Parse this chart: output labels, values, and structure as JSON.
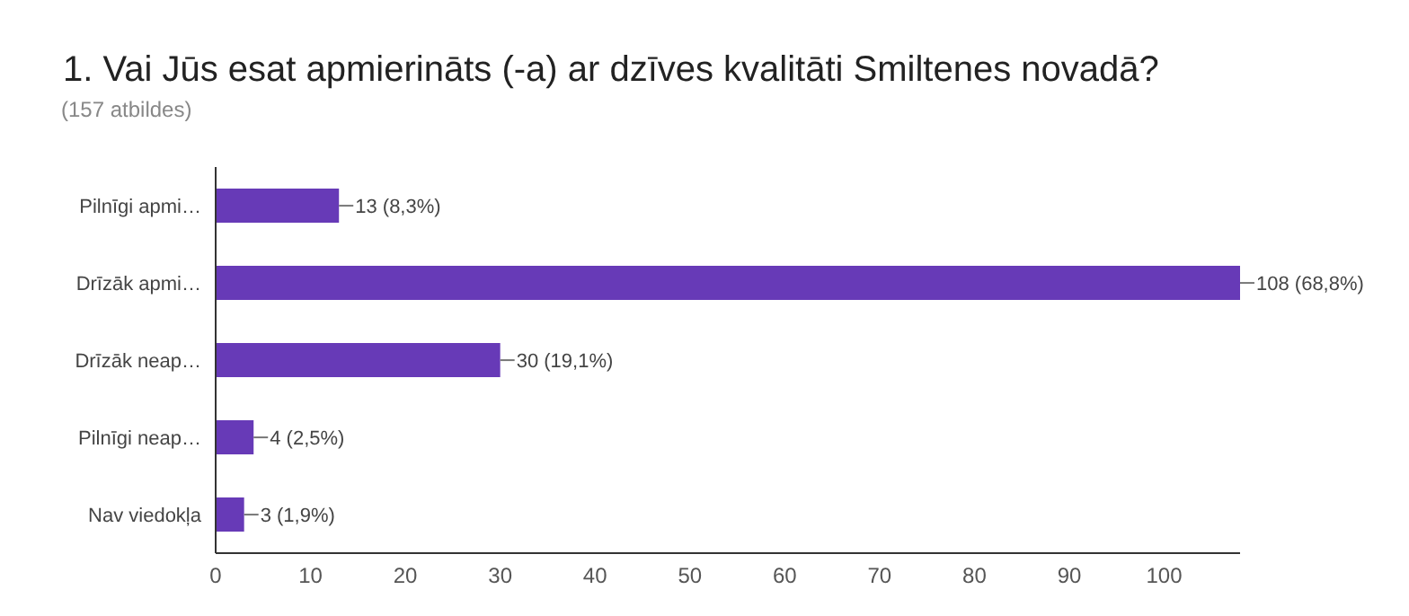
{
  "chart_data": {
    "type": "bar",
    "orientation": "horizontal",
    "title": "1. Vai Jūs esat apmierināts (-a) ar dzīves kvalitāti Smiltenes novadā?",
    "subtitle": "(157 atbildes)",
    "categories": [
      "Pilnīgi apmi…",
      "Drīzāk apmi…",
      "Drīzāk neap…",
      "Pilnīgi neap…",
      "Nav viedokļa"
    ],
    "values": [
      13,
      108,
      30,
      4,
      3
    ],
    "value_labels": [
      "13 (8,3%)",
      "108 (68,8%)",
      "30 (19,1%)",
      "4 (2,5%)",
      "3 (1,9%)"
    ],
    "color": "#673ab7",
    "xlim": [
      0,
      108
    ],
    "xticks": [
      0,
      10,
      20,
      30,
      40,
      50,
      60,
      70,
      80,
      90,
      100
    ],
    "grid": false,
    "legend": false
  }
}
